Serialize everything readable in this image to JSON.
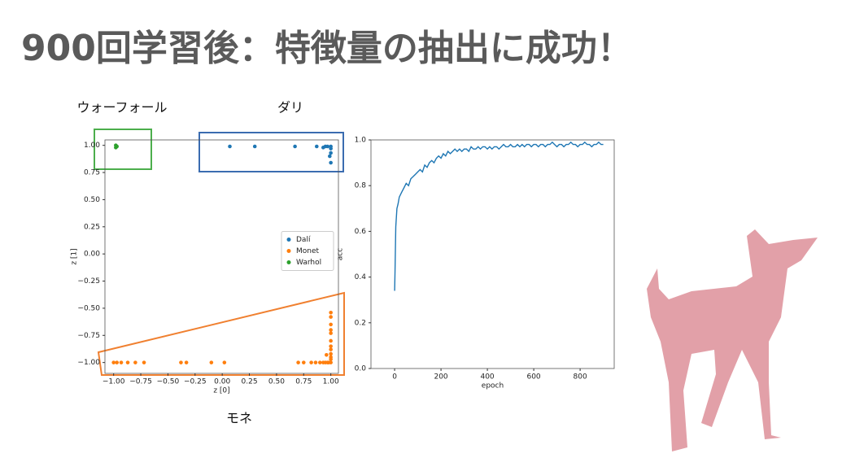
{
  "title": "900回学習後：特徴量の抽出に成功！",
  "chart_data": [
    {
      "type": "scatter",
      "annotations": [
        "ウォーフォール",
        "ダリ",
        "モネ"
      ],
      "x_label": "z [0]",
      "y_label": "z [1]",
      "xlim": [
        -1.08,
        1.07
      ],
      "ylim": [
        -1.1,
        1.05
      ],
      "xticks": [
        {
          "value": -1,
          "label": "−1.00"
        },
        {
          "value": -0.75,
          "label": "−0.75"
        },
        {
          "value": -0.5,
          "label": "−0.50"
        },
        {
          "value": -0.25,
          "label": "−0.25"
        },
        {
          "value": 0,
          "label": "0.00"
        },
        0.25,
        {
          "value": 0.5,
          "label": "0.50"
        },
        0.75,
        {
          "value": 1,
          "label": "1.00"
        }
      ],
      "yticks": [
        {
          "value": -1,
          "label": "−1.00"
        },
        {
          "value": -0.75,
          "label": "−0.75"
        },
        {
          "value": -0.5,
          "label": "−0.50"
        },
        {
          "value": -0.25,
          "label": "−0.25"
        },
        {
          "value": 0,
          "label": "0.00"
        },
        0.25,
        {
          "value": 0.5,
          "label": "0.50"
        },
        0.75,
        {
          "value": 1,
          "label": "1.00"
        }
      ],
      "legend": "center right",
      "series": [
        {
          "name": "Dalí",
          "color": "#1f77b4",
          "x": [
            0.07,
            0.3,
            0.67,
            0.87,
            0.93,
            0.95,
            0.97,
            1.0,
            1.0,
            1.0,
            0.99,
            1.0
          ],
          "values": [
            0.99,
            0.99,
            0.99,
            0.99,
            0.98,
            0.99,
            0.99,
            0.99,
            0.97,
            0.93,
            0.9,
            0.84
          ]
        },
        {
          "name": "Monet",
          "color": "#ff7f0e",
          "x": [
            -1.0,
            -0.97,
            -0.93,
            -0.87,
            -0.8,
            -0.72,
            -0.38,
            -0.33,
            -0.1,
            0.02,
            0.7,
            0.75,
            0.82,
            0.86,
            0.9,
            0.93,
            0.95,
            0.97,
            0.98,
            1.0,
            1.0,
            1.0,
            1.0,
            1.0,
            1.0,
            1.0,
            1.0,
            1.0,
            1.0,
            1.0,
            1.0,
            0.96
          ],
          "values": [
            -1.0,
            -1.0,
            -1.0,
            -1.0,
            -1.0,
            -1.0,
            -1.0,
            -1.0,
            -1.0,
            -1.0,
            -1.0,
            -1.0,
            -1.0,
            -1.0,
            -1.0,
            -1.0,
            -1.0,
            -1.0,
            -1.0,
            -1.0,
            -0.54,
            -0.58,
            -0.65,
            -0.7,
            -0.73,
            -0.8,
            -0.85,
            -0.88,
            -0.92,
            -0.95,
            -0.97,
            -0.93
          ]
        },
        {
          "name": "Warhol",
          "color": "#2ca02c",
          "x": [
            -0.98,
            -0.98,
            -0.97
          ],
          "values": [
            1.0,
            0.98,
            0.99
          ]
        }
      ]
    },
    {
      "type": "line",
      "x_label": "epoch",
      "y_label": "acc",
      "color": "#1f77b4",
      "xlim": [
        -102,
        947
      ],
      "ylim": [
        0,
        1.0
      ],
      "xticks": [
        0,
        200,
        400,
        600,
        800
      ],
      "yticks": [
        {
          "value": 0,
          "label": "0.0"
        },
        0.2,
        0.4,
        0.6,
        0.8,
        {
          "value": 1,
          "label": "1.0"
        }
      ],
      "x": [
        0,
        2,
        5,
        10,
        15,
        20,
        30,
        40,
        50,
        60,
        70,
        80,
        90,
        100,
        110,
        120,
        130,
        140,
        150,
        160,
        170,
        180,
        190,
        200,
        210,
        220,
        230,
        240,
        250,
        260,
        270,
        280,
        290,
        300,
        310,
        320,
        330,
        340,
        350,
        360,
        370,
        380,
        390,
        400,
        410,
        420,
        430,
        440,
        450,
        460,
        470,
        480,
        490,
        500,
        510,
        520,
        530,
        540,
        550,
        560,
        570,
        580,
        590,
        600,
        610,
        620,
        630,
        640,
        650,
        660,
        670,
        680,
        690,
        700,
        710,
        720,
        730,
        740,
        750,
        760,
        770,
        780,
        790,
        800,
        810,
        820,
        830,
        840,
        850,
        860,
        870,
        880,
        890,
        900
      ],
      "values": [
        0.34,
        0.43,
        0.62,
        0.7,
        0.72,
        0.75,
        0.77,
        0.79,
        0.81,
        0.8,
        0.83,
        0.84,
        0.85,
        0.86,
        0.87,
        0.86,
        0.89,
        0.88,
        0.9,
        0.91,
        0.9,
        0.92,
        0.93,
        0.92,
        0.94,
        0.93,
        0.95,
        0.94,
        0.95,
        0.96,
        0.95,
        0.96,
        0.95,
        0.96,
        0.96,
        0.95,
        0.97,
        0.96,
        0.96,
        0.97,
        0.96,
        0.97,
        0.97,
        0.96,
        0.97,
        0.96,
        0.97,
        0.97,
        0.96,
        0.97,
        0.98,
        0.97,
        0.97,
        0.98,
        0.97,
        0.97,
        0.98,
        0.97,
        0.98,
        0.97,
        0.98,
        0.98,
        0.97,
        0.98,
        0.98,
        0.97,
        0.98,
        0.98,
        0.97,
        0.98,
        0.98,
        0.99,
        0.98,
        0.97,
        0.98,
        0.98,
        0.97,
        0.98,
        0.98,
        0.99,
        0.98,
        0.98,
        0.97,
        0.98,
        0.98,
        0.99,
        0.98,
        0.98,
        0.97,
        0.98,
        0.98,
        0.99,
        0.98,
        0.98
      ]
    }
  ]
}
